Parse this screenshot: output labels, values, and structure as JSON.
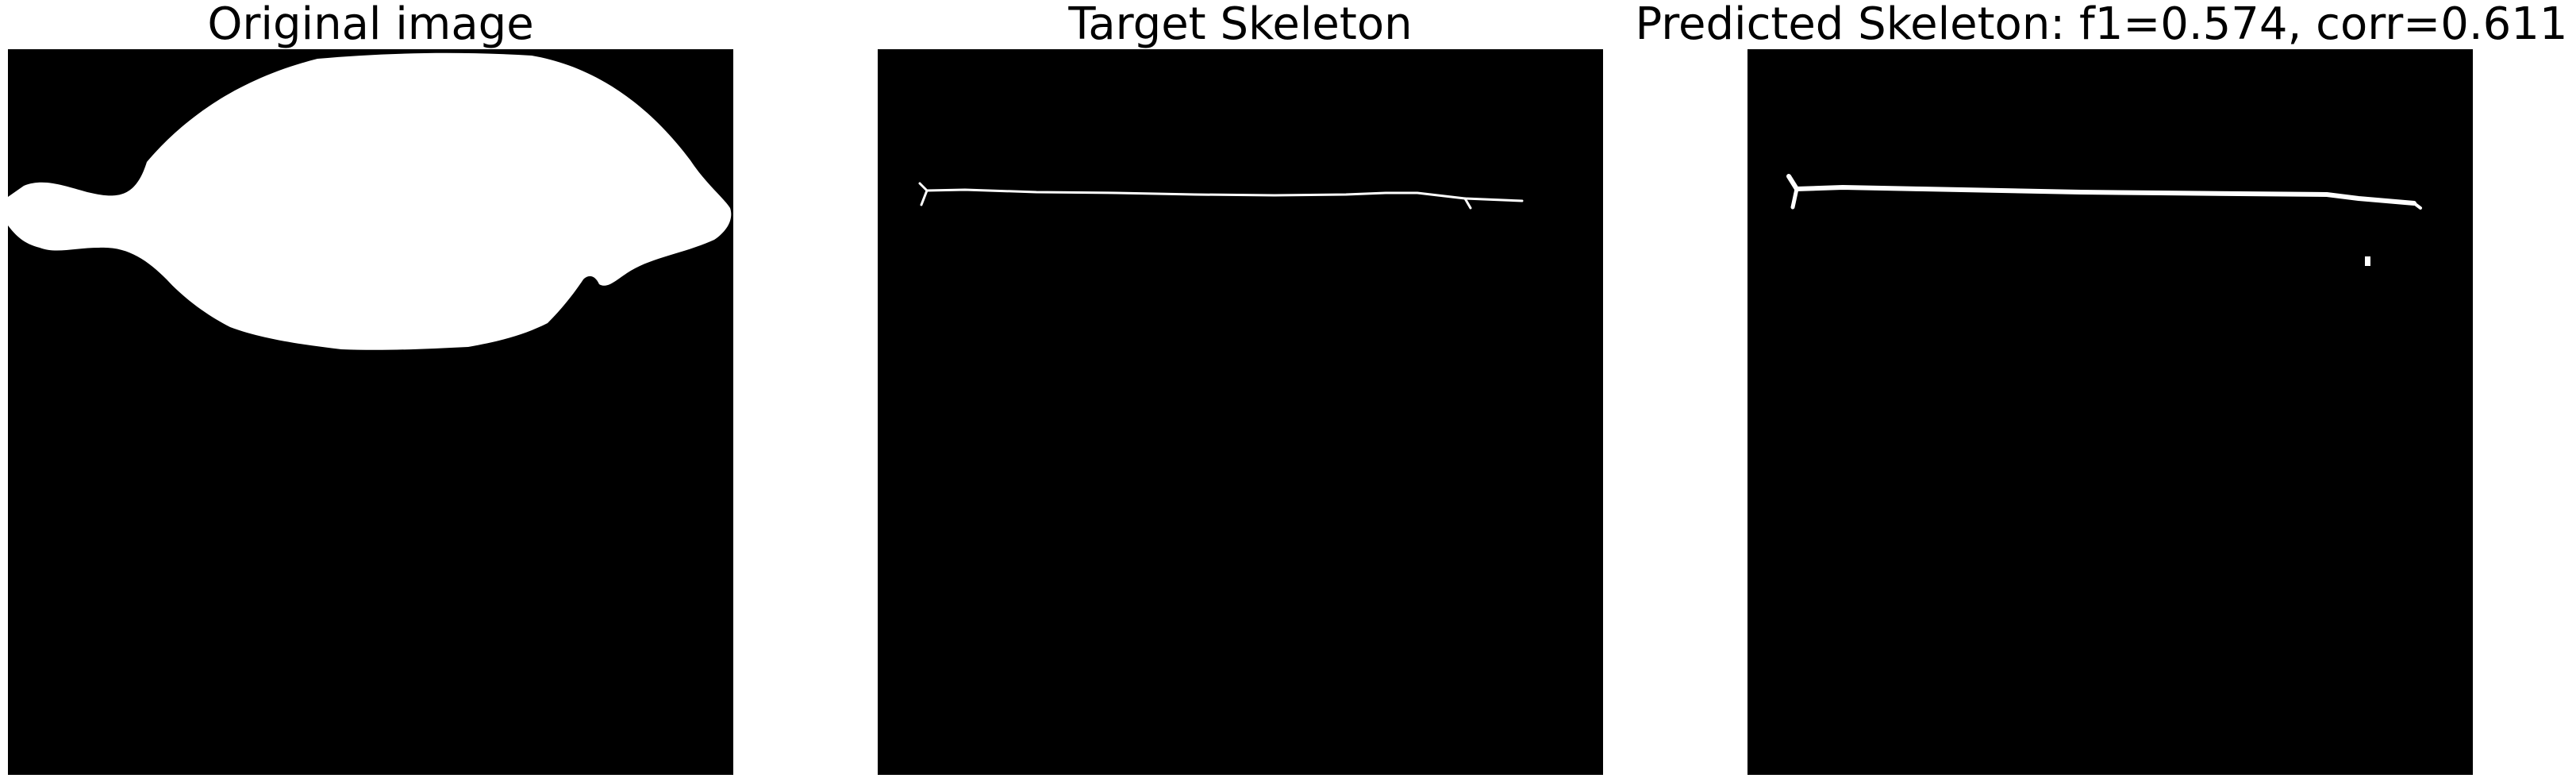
{
  "panels": [
    {
      "id": "original",
      "title": "Original image"
    },
    {
      "id": "target",
      "title": "Target Skeleton"
    },
    {
      "id": "predicted",
      "title": "Predicted Skeleton: f1=0.574, corr=0.611"
    }
  ],
  "colors": {
    "background": "#000000",
    "foreground": "#ffffff",
    "figure_background": "#ffffff"
  }
}
